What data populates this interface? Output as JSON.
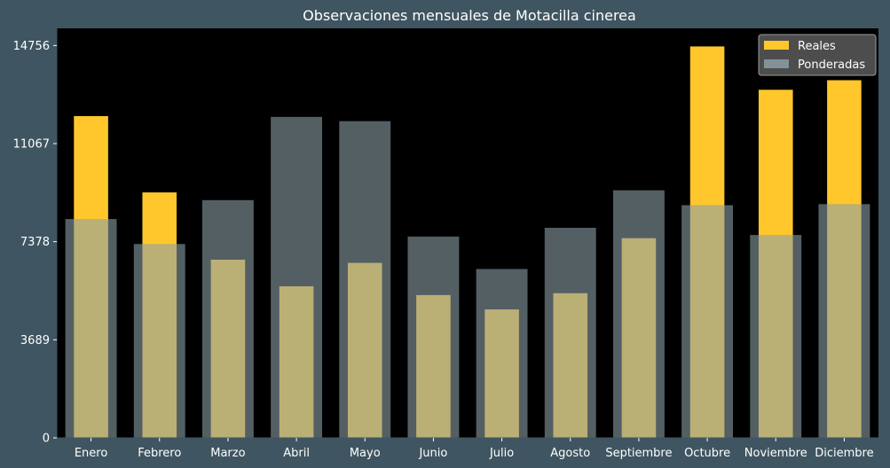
{
  "chart_data": {
    "type": "bar",
    "title": "Observaciones mensuales de Motacilla cinerea",
    "categories": [
      "Enero",
      "Febrero",
      "Marzo",
      "Abril",
      "Mayo",
      "Junio",
      "Julio",
      "Agosto",
      "Septiembre",
      "Octubre",
      "Noviembre",
      "Diciembre"
    ],
    "series": [
      {
        "name": "Reales",
        "color": "#ffc72c",
        "values": [
          12100,
          9230,
          6700,
          5700,
          6580,
          5370,
          4830,
          5440,
          7510,
          14720,
          13090,
          13450
        ]
      },
      {
        "name": "Ponderadas",
        "color": "#8c9fa6",
        "values": [
          8230,
          7290,
          8940,
          12070,
          11910,
          7570,
          6350,
          7900,
          9310,
          8750,
          7630,
          8790
        ]
      }
    ],
    "yticks": [
      0,
      3689,
      7378,
      11067,
      14756
    ],
    "ylim": [
      0,
      15400
    ],
    "xlabel": "",
    "ylabel": "",
    "legend_position": "top-right",
    "grid": false
  }
}
